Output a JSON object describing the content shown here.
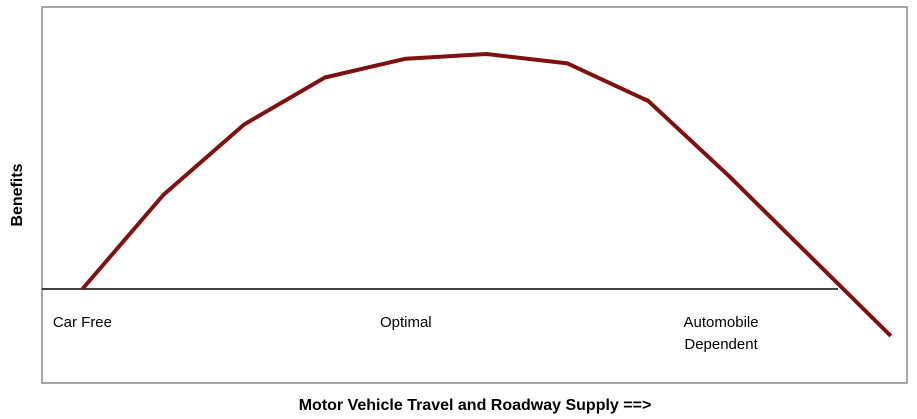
{
  "chart_data": {
    "type": "line",
    "x_label": "Motor Vehicle Travel and Roadway Supply ==>",
    "y_label": "Benefits",
    "x": [
      0,
      1,
      2,
      3,
      4,
      5,
      6,
      7,
      8,
      9,
      10
    ],
    "series": [
      {
        "color": "#7f1010",
        "values": [
          0,
          1.0,
          1.75,
          2.25,
          2.45,
          2.5,
          2.4,
          2.0,
          1.2,
          0.35,
          -0.5
        ]
      }
    ],
    "xlim": [
      -0.5,
      10.2
    ],
    "ylim": [
      -1,
      3
    ],
    "annotations": [
      {
        "text": "Car Free",
        "x": 0
      },
      {
        "text": "Optimal",
        "x": 4
      },
      {
        "text": "Automobile Dependent",
        "x": 7.9
      }
    ]
  }
}
